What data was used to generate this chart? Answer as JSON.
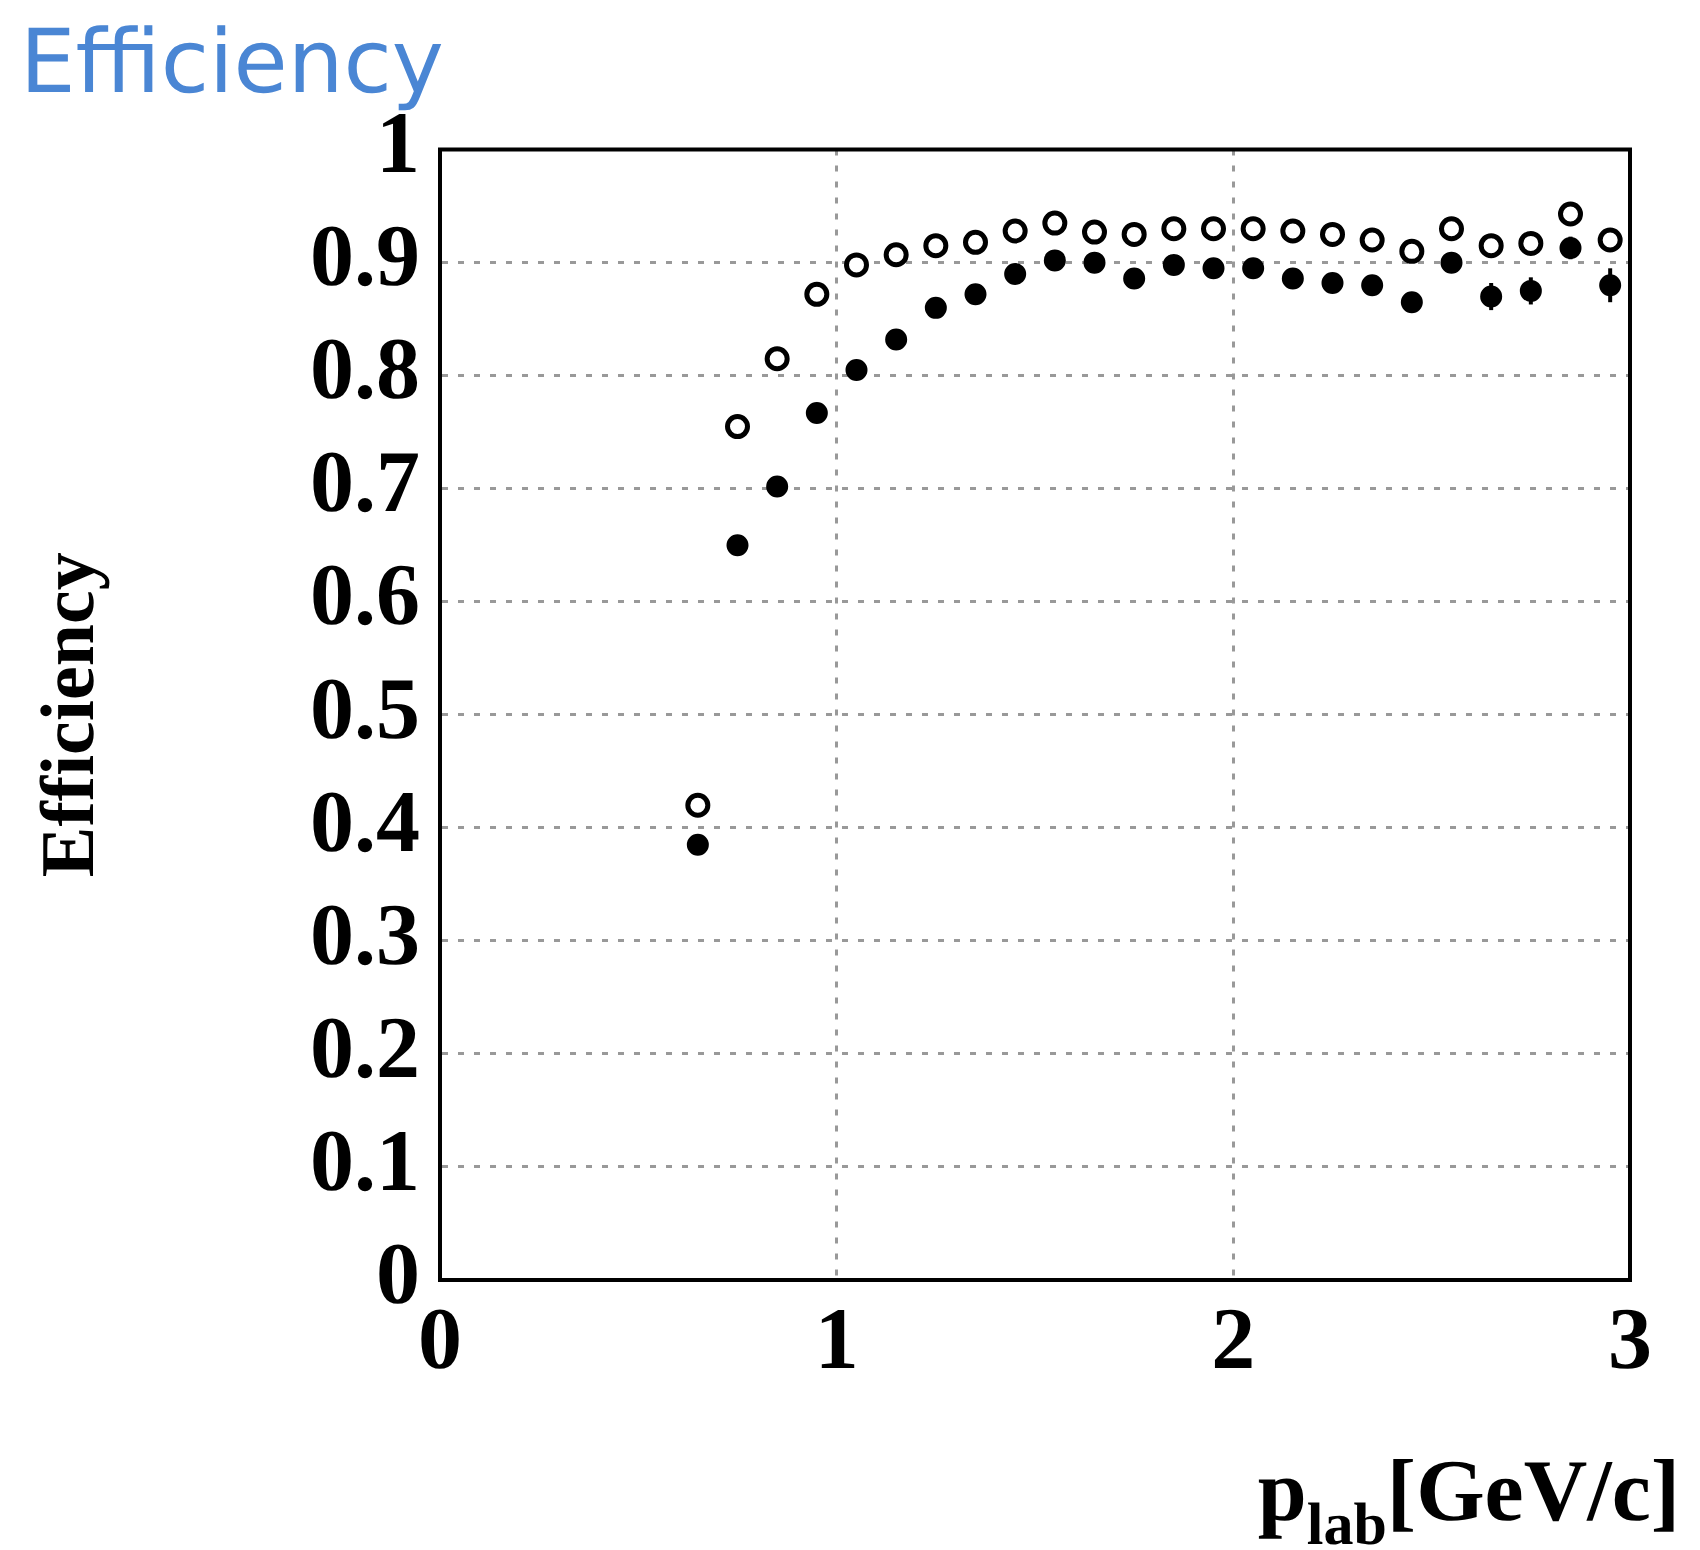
{
  "chart_data": {
    "type": "scatter",
    "title": "Efficiency",
    "ylabel": "Efficiency",
    "xlabel": "p$_{lab}$[GeV/c]",
    "x": [
      0.65,
      0.75,
      0.85,
      0.95,
      1.05,
      1.15,
      1.25,
      1.35,
      1.45,
      1.55,
      1.65,
      1.75,
      1.85,
      1.95,
      2.05,
      2.15,
      2.25,
      2.35,
      2.45,
      2.55,
      2.65,
      2.75,
      2.85,
      2.95
    ],
    "series": [
      {
        "color": "#000000",
        "values": [
          0.42,
          0.755,
          0.815,
          0.872,
          0.898,
          0.907,
          0.915,
          0.918,
          0.928,
          0.935,
          0.927,
          0.925,
          0.93,
          0.93,
          0.93,
          0.928,
          0.925,
          0.92,
          0.91,
          0.93,
          0.915,
          0.917,
          0.943,
          0.92
        ]
      },
      {
        "color": "#000000",
        "values": [
          0.385,
          0.65,
          0.702,
          0.767,
          0.805,
          0.832,
          0.86,
          0.872,
          0.89,
          0.902,
          0.9,
          0.886,
          0.898,
          0.895,
          0.895,
          0.886,
          0.882,
          0.88,
          0.865,
          0.9,
          0.87,
          0.875,
          0.913,
          0.88
        ],
        "errors": [
          null,
          null,
          null,
          null,
          null,
          null,
          null,
          null,
          null,
          null,
          null,
          null,
          null,
          null,
          null,
          null,
          null,
          null,
          null,
          null,
          0.012,
          0.012,
          0.01,
          0.015
        ]
      }
    ],
    "xlim": [
      0,
      3
    ],
    "xticks": [
      0,
      1,
      2,
      3
    ],
    "ylim": [
      0,
      1
    ],
    "yticks": [
      0,
      0.1,
      0.2,
      0.3,
      0.4,
      0.5,
      0.6,
      0.7,
      0.8,
      0.9,
      1
    ],
    "grid": true,
    "marker": "circle",
    "legend": false
  }
}
